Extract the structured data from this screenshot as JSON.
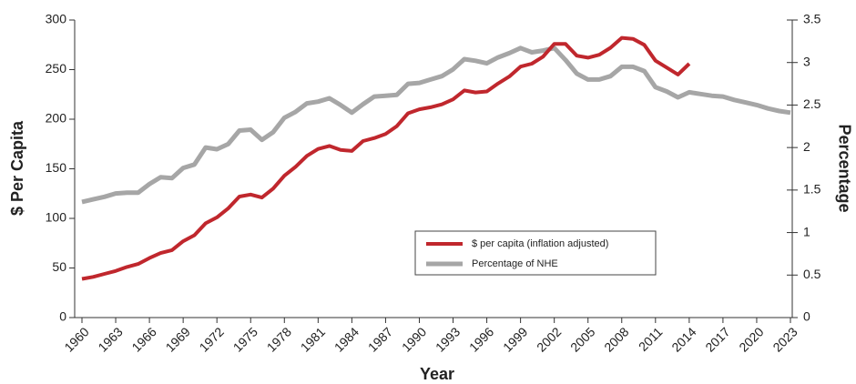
{
  "chart_data": {
    "type": "line",
    "xlabel": "Year",
    "ylabel": "$ Per Capita",
    "y2label": "Percentage",
    "x": [
      1960,
      1961,
      1962,
      1963,
      1964,
      1965,
      1966,
      1967,
      1968,
      1969,
      1970,
      1971,
      1972,
      1973,
      1974,
      1975,
      1976,
      1977,
      1978,
      1979,
      1980,
      1981,
      1982,
      1983,
      1984,
      1985,
      1986,
      1987,
      1988,
      1989,
      1990,
      1991,
      1992,
      1993,
      1994,
      1995,
      1996,
      1997,
      1998,
      1999,
      2000,
      2001,
      2002,
      2003,
      2004,
      2005,
      2006,
      2007,
      2008,
      2009,
      2010,
      2011,
      2012,
      2013,
      2014,
      2015,
      2016,
      2017,
      2018,
      2019,
      2020,
      2021,
      2022,
      2023
    ],
    "series": [
      {
        "name": "$ per capita (inflation adjusted)",
        "color": "#c0272d",
        "values": [
          39,
          41,
          44,
          47,
          51,
          54,
          60,
          65,
          68,
          77,
          83,
          95,
          101,
          110,
          122,
          124,
          121,
          130,
          143,
          152,
          163,
          170,
          173,
          169,
          168,
          178,
          181,
          185,
          193,
          206,
          210,
          212,
          215,
          220,
          229,
          227,
          228,
          236,
          243,
          253,
          256,
          263,
          276,
          276,
          264,
          262,
          265,
          272,
          282,
          281,
          275,
          259,
          252,
          245,
          256,
          null,
          null,
          null,
          null,
          null,
          null,
          null,
          null,
          null
        ]
      },
      {
        "name": "Percentage of NHE",
        "color": "#a6a6a6",
        "axis": "y2",
        "values": [
          1.36,
          1.39,
          1.42,
          1.46,
          1.47,
          1.47,
          1.57,
          1.65,
          1.64,
          1.76,
          1.8,
          2.0,
          1.98,
          2.04,
          2.2,
          2.21,
          2.09,
          2.18,
          2.35,
          2.42,
          2.52,
          2.54,
          2.58,
          2.5,
          2.41,
          2.51,
          2.6,
          2.61,
          2.62,
          2.75,
          2.76,
          2.8,
          2.84,
          2.92,
          3.04,
          3.02,
          2.99,
          3.06,
          3.11,
          3.17,
          3.12,
          3.14,
          3.17,
          3.03,
          2.87,
          2.8,
          2.8,
          2.84,
          2.95,
          2.95,
          2.9,
          2.71,
          2.66,
          2.59,
          2.65,
          2.63,
          2.61,
          2.6,
          2.56,
          2.53,
          2.5,
          2.46,
          2.43,
          2.41
        ]
      }
    ],
    "xlim": [
      1960,
      2023
    ],
    "xticks": [
      1960,
      1963,
      1966,
      1969,
      1972,
      1975,
      1978,
      1981,
      1984,
      1987,
      1990,
      1993,
      1996,
      1999,
      2002,
      2005,
      2008,
      2011,
      2014,
      2017,
      2020,
      2023
    ],
    "ylim": [
      0,
      300
    ],
    "yticks": [
      0,
      50,
      100,
      150,
      200,
      250,
      300
    ],
    "y2lim": [
      0,
      3.5
    ],
    "y2ticks": [
      0,
      0.5,
      1,
      1.5,
      2,
      2.5,
      3,
      3.5
    ],
    "grid": false,
    "legend": "center right"
  }
}
